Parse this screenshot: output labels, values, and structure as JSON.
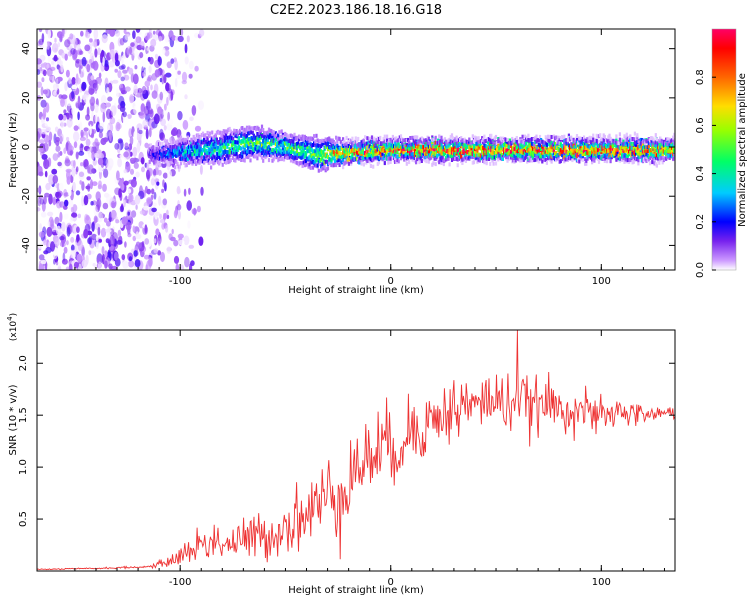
{
  "title": "C2E2.2023.186.18.16.G18",
  "colors": {
    "snr_line": "#ee3333",
    "background": "#ffffff",
    "axis": "#000000"
  },
  "chart_data": [
    {
      "type": "heatmap",
      "xlabel": "Height of straight line (km)",
      "ylabel": "Frequency (Hz)",
      "xlim": [
        -168,
        135
      ],
      "ylim": [
        -50,
        48
      ],
      "xticks": [
        "-100",
        "0",
        "100"
      ],
      "yticks": [
        "-40",
        "-20",
        "0",
        "20",
        "40"
      ],
      "colorbar": {
        "label": "Normalized spectral amplitude",
        "range": [
          0.0,
          1.0
        ],
        "ticks": [
          "0.0",
          "0.2",
          "0.4",
          "0.6",
          "0.8"
        ],
        "colormap": [
          "#ffffff",
          "#cc99ff",
          "#7722ee",
          "#0000ff",
          "#00ccff",
          "#00ff66",
          "#ccff00",
          "#ffcc00",
          "#ff3300",
          "#ff0066"
        ]
      },
      "description_points": {
        "noise_region_x": [
          -168,
          -100
        ],
        "ridge": {
          "x": [
            -115,
            -100,
            -80,
            -65,
            -50,
            -35,
            -20,
            0,
            20,
            50,
            80,
            110,
            135
          ],
          "center_hz": [
            -3,
            -2,
            0,
            2,
            0,
            -3,
            -2,
            -1,
            -1,
            -1,
            -1,
            -1,
            -1
          ],
          "halfwidth_hz": [
            3,
            4,
            5,
            5,
            4,
            5,
            3,
            3,
            3,
            3,
            3,
            3,
            3
          ],
          "peak_amp": [
            0.15,
            0.35,
            0.45,
            0.5,
            0.5,
            0.55,
            0.8,
            0.9,
            0.95,
            0.95,
            0.95,
            0.9,
            0.85
          ]
        }
      }
    },
    {
      "type": "line",
      "xlabel": "Height of straight line (km)",
      "ylabel": "SNR (10 * v/v)",
      "y_multiplier": "(x10^4)",
      "xlim": [
        -168,
        135
      ],
      "ylim": [
        0,
        23200
      ],
      "xticks": [
        "-100",
        "0",
        "100"
      ],
      "yticks": [
        "0.5",
        "1.0",
        "1.5",
        "2.0"
      ],
      "series": [
        {
          "x": [
            -168,
            -140,
            -115,
            -105,
            -100,
            -95,
            -90,
            -85,
            -80,
            -75,
            -70,
            -65,
            -60,
            -55,
            -50,
            -45,
            -40,
            -35,
            -30,
            -25,
            -20,
            -15,
            -10,
            -5,
            0,
            5,
            10,
            15,
            20,
            25,
            30,
            35,
            40,
            45,
            50,
            55,
            60,
            65,
            70,
            75,
            80,
            85,
            90,
            95,
            100,
            105,
            110,
            115,
            120,
            125,
            130,
            135
          ],
          "y_mean": [
            150,
            250,
            400,
            900,
            1500,
            2000,
            2600,
            2900,
            2800,
            2600,
            2900,
            3300,
            3300,
            3600,
            4300,
            5000,
            5500,
            6200,
            7200,
            7500,
            8800,
            10000,
            11000,
            12000,
            11500,
            12500,
            13500,
            14000,
            14500,
            15000,
            15500,
            16000,
            15800,
            16500,
            16500,
            16000,
            16500,
            16000,
            15800,
            16200,
            15500,
            15500,
            15800,
            15000,
            14800,
            15000,
            15500,
            15000,
            15200,
            15000,
            15200,
            15300
          ],
          "noise": [
            40,
            60,
            100,
            400,
            900,
            1200,
            1500,
            1700,
            1700,
            1600,
            1700,
            1900,
            1900,
            2000,
            2200,
            2600,
            2800,
            3200,
            3400,
            3600,
            3600,
            3400,
            3300,
            3300,
            3200,
            3000,
            3000,
            2800,
            2700,
            2600,
            2600,
            2600,
            2500,
            2400,
            2400,
            2300,
            2300,
            2200,
            2100,
            2000,
            1900,
            1800,
            1700,
            1600,
            1500,
            1300,
            1100,
            1000,
            900,
            800,
            700,
            700
          ],
          "peak": {
            "x": 60,
            "y": 23200
          }
        }
      ]
    }
  ]
}
